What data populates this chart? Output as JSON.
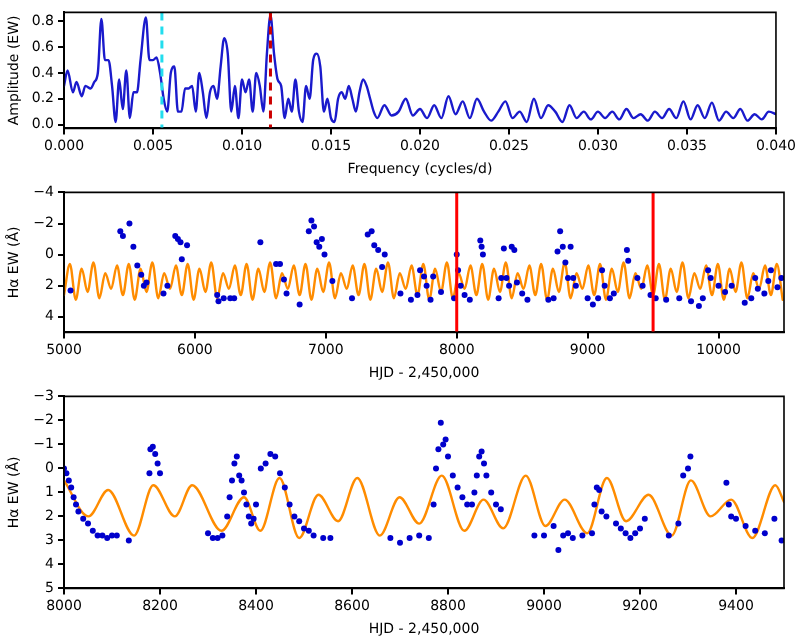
{
  "chart_data": [
    {
      "type": "line",
      "xlabel": "Frequency (cycles/d)",
      "ylabel": "Amplitude (EW)",
      "xlim": [
        0,
        0.04
      ],
      "xticks": [
        {
          "value": 0,
          "label": "0.000"
        },
        {
          "value": 0.005,
          "label": "0.005"
        },
        {
          "value": 0.01,
          "label": "0.010"
        },
        {
          "value": 0.015,
          "label": "0.015"
        },
        {
          "value": 0.02,
          "label": "0.020"
        },
        {
          "value": 0.025,
          "label": "0.025"
        },
        {
          "value": 0.03,
          "label": "0.030"
        },
        {
          "value": 0.035,
          "label": "0.035"
        },
        {
          "value": 0.04,
          "label": "0.040"
        }
      ],
      "ylim": [
        -0.03,
        0.87
      ],
      "yticks": [
        {
          "value": 0,
          "label": "0.0"
        },
        {
          "value": 0.2,
          "label": "0.2"
        },
        {
          "value": 0.4,
          "label": "0.4"
        },
        {
          "value": 0.6,
          "label": "0.6"
        },
        {
          "value": 0.8,
          "label": "0.8"
        }
      ],
      "series": [
        {
          "color": "#1a1acc",
          "x": [
            0,
            0.0002,
            0.0005,
            0.0007,
            0.001,
            0.0012,
            0.0015,
            0.0017,
            0.0019,
            0.0021,
            0.0023,
            0.0025,
            0.0027,
            0.0029,
            0.0031,
            0.0033,
            0.0035,
            0.0037,
            0.0039,
            0.0041,
            0.0043,
            0.0046,
            0.0048,
            0.005,
            0.0052,
            0.0054,
            0.0056,
            0.0058,
            0.006,
            0.0062,
            0.0064,
            0.0066,
            0.0068,
            0.007,
            0.0072,
            0.0074,
            0.0076,
            0.0078,
            0.008,
            0.0082,
            0.0084,
            0.0086,
            0.0088,
            0.009,
            0.0092,
            0.0094,
            0.0096,
            0.0098,
            0.01,
            0.0102,
            0.0104,
            0.0106,
            0.0108,
            0.011,
            0.0112,
            0.0114,
            0.0116,
            0.0118,
            0.012,
            0.0122,
            0.0124,
            0.0126,
            0.0128,
            0.013,
            0.0132,
            0.0134,
            0.0136,
            0.0138,
            0.014,
            0.0142,
            0.0144,
            0.0146,
            0.0148,
            0.015,
            0.0152,
            0.0154,
            0.0156,
            0.0158,
            0.016,
            0.0162,
            0.0164,
            0.0166,
            0.0168,
            0.017,
            0.0172,
            0.0174,
            0.0176,
            0.018,
            0.0184,
            0.0188,
            0.0192,
            0.0196,
            0.02,
            0.0204,
            0.0208,
            0.0212,
            0.0216,
            0.022,
            0.0224,
            0.0228,
            0.0232,
            0.0236,
            0.024,
            0.0244,
            0.0248,
            0.0252,
            0.0256,
            0.026,
            0.0264,
            0.0268,
            0.0272,
            0.0276,
            0.028,
            0.0284,
            0.0288,
            0.0292,
            0.0296,
            0.03,
            0.0304,
            0.0308,
            0.0312,
            0.0316,
            0.032,
            0.0324,
            0.0328,
            0.0332,
            0.0336,
            0.034,
            0.0344,
            0.0348,
            0.0352,
            0.0356,
            0.036,
            0.0364,
            0.0368,
            0.0372,
            0.0376,
            0.038,
            0.0384,
            0.0388,
            0.0392,
            0.0396,
            0.04
          ],
          "values": [
            0.3,
            0.42,
            0.25,
            0.33,
            0.22,
            0.3,
            0.28,
            0.33,
            0.4,
            0.82,
            0.5,
            0.5,
            0.3,
            0.02,
            0.35,
            0.12,
            0.42,
            0.05,
            0.25,
            0.25,
            0.5,
            0.83,
            0.5,
            0.5,
            0.52,
            0.4,
            0.2,
            0.1,
            0.4,
            0.45,
            0.1,
            0.1,
            0.28,
            0.28,
            0.3,
            0.1,
            0.4,
            0.25,
            0.05,
            0.25,
            0.3,
            0.2,
            0.45,
            0.67,
            0.55,
            0.1,
            0.3,
            0.05,
            0.35,
            0.25,
            0.35,
            0.1,
            0.4,
            0.3,
            0.1,
            0.55,
            0.85,
            0.55,
            0.35,
            0.3,
            0.05,
            0.2,
            0.1,
            0.35,
            0.1,
            0.02,
            0.3,
            0.2,
            0.5,
            0.55,
            0.45,
            0.1,
            0.2,
            0.05,
            0.02,
            0.2,
            0.25,
            0.2,
            0.3,
            0.2,
            0.1,
            0.25,
            0.35,
            0.3,
            0.2,
            0.1,
            0.05,
            0.15,
            0.07,
            0.1,
            0.2,
            0.07,
            0.12,
            0.05,
            0.15,
            0.05,
            0.22,
            0.08,
            0.18,
            0.05,
            0.2,
            0.1,
            0.03,
            0.1,
            0.18,
            0.05,
            0.1,
            0.02,
            0.2,
            0.05,
            0.15,
            0.1,
            0.02,
            0.15,
            0.05,
            0.1,
            0.04,
            0.1,
            0.05,
            0.1,
            0.04,
            0.12,
            0.05,
            0.08,
            0.03,
            0.1,
            0.05,
            0.12,
            0.05,
            0.18,
            0.04,
            0.15,
            0.05,
            0.17,
            0.03,
            0.1,
            0.05,
            0.12,
            0.03,
            0.08,
            0.04,
            0.1,
            0.08
          ]
        }
      ],
      "ref_lines": [
        {
          "axis": "x",
          "value": 0.0055,
          "color": "#22ddee",
          "line_style": "dashed"
        },
        {
          "axis": "x",
          "value": 0.0116,
          "color": "#cc0000",
          "line_style": "dashed"
        }
      ]
    },
    {
      "type": "scatter",
      "xlabel": "HJD - 2,450,000",
      "ylabel": "Hα EW (Å)",
      "xlim": [
        5000,
        10500
      ],
      "xticks": [
        5000,
        6000,
        7000,
        8000,
        9000,
        10000
      ],
      "ylim": [
        5,
        -4
      ],
      "yticks": [
        {
          "value": -4,
          "label": "−4"
        },
        {
          "value": -2,
          "label": "−2"
        },
        0,
        2,
        4
      ],
      "series": [
        {
          "marker": "circle",
          "color": "#0000cc",
          "x": [
            5050,
            5430,
            5450,
            5500,
            5530,
            5560,
            5590,
            5610,
            5630,
            5760,
            5790,
            5850,
            5870,
            5890,
            5900,
            5940,
            6170,
            6180,
            6220,
            6270,
            6300,
            6500,
            6620,
            6650,
            6680,
            6700,
            6800,
            6870,
            6890,
            6910,
            6930,
            6950,
            6970,
            6990,
            7050,
            7200,
            7320,
            7350,
            7370,
            7400,
            7430,
            7450,
            7570,
            7650,
            7700,
            7720,
            7750,
            7770,
            7800,
            7820,
            7880,
            7980,
            8000,
            8010,
            8030,
            8060,
            8100,
            8180,
            8190,
            8200,
            8320,
            8340,
            8360,
            8380,
            8400,
            8420,
            8440,
            8460,
            8500,
            8540,
            8700,
            8740,
            8770,
            8790,
            8810,
            8830,
            8850,
            8870,
            8890,
            8910,
            9000,
            9040,
            9080,
            9110,
            9130,
            9170,
            9200,
            9300,
            9310,
            9380,
            9420,
            9480,
            9520,
            9600,
            9700,
            9790,
            9850,
            9880,
            9920,
            9940,
            10000,
            10050,
            10100,
            10200,
            10250,
            10280,
            10300,
            10350,
            10380,
            10400,
            10450,
            10480
          ],
          "values": [
            2.3,
            -1.5,
            -1.2,
            -2.0,
            -0.5,
            0.7,
            1.3,
            2.0,
            1.8,
            2.5,
            2.0,
            -1.2,
            -1.0,
            -0.8,
            0.3,
            -0.6,
            2.6,
            3.0,
            2.8,
            2.8,
            2.8,
            -0.8,
            0.6,
            0.6,
            1.6,
            2.5,
            3.2,
            -1.5,
            -2.2,
            -1.8,
            -0.8,
            -0.5,
            -1.0,
            0.0,
            1.7,
            2.8,
            -1.3,
            -1.5,
            -0.6,
            -0.3,
            0.8,
            0.0,
            2.5,
            2.9,
            2.6,
            1.0,
            1.4,
            2.0,
            2.9,
            1.4,
            2.4,
            2.8,
            0.0,
            1.0,
            2.0,
            2.6,
            2.9,
            -0.9,
            -0.5,
            0.0,
            2.8,
            1.5,
            -0.4,
            1.5,
            2.0,
            -0.5,
            -0.3,
            1.8,
            2.5,
            2.9,
            2.9,
            2.8,
            -0.2,
            -1.5,
            -0.5,
            0.5,
            1.5,
            -0.5,
            1.5,
            2.0,
            2.8,
            3.2,
            2.8,
            1.0,
            2.0,
            2.8,
            2.5,
            -0.3,
            0.4,
            1.5,
            2.0,
            2.6,
            2.8,
            2.9,
            2.8,
            3.0,
            3.3,
            2.8,
            1.0,
            1.5,
            2.0,
            2.4,
            2.0,
            3.1,
            2.8,
            1.5,
            2.2,
            2.5,
            1.7,
            1.0,
            2.1,
            1.5
          ]
        },
        {
          "type": "line",
          "color": "#ff8c00",
          "x": [
            5000,
            5045,
            5090,
            5135,
            5180,
            5225,
            5270,
            5315,
            5360,
            5405,
            5450,
            5495,
            5540,
            5585,
            5630,
            5675,
            5720,
            5765,
            5810,
            5855,
            5900,
            5945,
            5990,
            6035,
            6080,
            6125,
            6170,
            6215,
            6260,
            6305,
            6350,
            6395,
            6440,
            6485,
            6530,
            6575,
            6620,
            6665,
            6710,
            6755,
            6800,
            6845,
            6890,
            6935,
            6980,
            7025,
            7070,
            7115,
            7160,
            7205,
            7250,
            7295,
            7340,
            7385,
            7430,
            7475,
            7520,
            7565,
            7610,
            7655,
            7700,
            7745,
            7790,
            7835,
            7880,
            7925,
            7970,
            8015,
            8060,
            8105,
            8150,
            8195,
            8240,
            8285,
            8330,
            8375,
            8420,
            8465,
            8510,
            8555,
            8600,
            8645,
            8690,
            8735,
            8780,
            8825,
            8870,
            8915,
            8960,
            9005,
            9050,
            9095,
            9140,
            9185,
            9230,
            9275,
            9320,
            9365,
            9410,
            9455,
            9500,
            9545,
            9590,
            9635,
            9680,
            9725,
            9770,
            9815,
            9860,
            9905,
            9950,
            9995,
            10040,
            10085,
            10130,
            10175,
            10220,
            10265,
            10310,
            10355,
            10400,
            10445,
            10490
          ],
          "values": [
            2.6,
            0.6,
            2.9,
            0.9,
            2.4,
            0.5,
            2.8,
            1.2,
            2.2,
            0.7,
            2.6,
            0.6,
            2.9,
            0.9,
            2.4,
            0.5,
            2.8,
            1.2,
            2.2,
            0.7,
            2.6,
            0.6,
            2.9,
            0.9,
            2.4,
            0.5,
            2.8,
            1.2,
            2.2,
            0.7,
            2.6,
            0.6,
            2.9,
            0.9,
            2.4,
            0.5,
            2.8,
            1.2,
            2.2,
            0.7,
            2.6,
            0.6,
            2.9,
            0.9,
            2.4,
            0.5,
            2.8,
            1.2,
            2.2,
            0.7,
            2.6,
            0.6,
            2.9,
            0.9,
            2.4,
            0.5,
            2.8,
            1.2,
            2.2,
            0.7,
            2.6,
            0.6,
            2.9,
            0.9,
            2.4,
            0.5,
            2.8,
            1.2,
            2.2,
            0.7,
            2.6,
            0.6,
            2.9,
            0.9,
            2.4,
            0.5,
            2.8,
            1.2,
            2.2,
            0.7,
            2.6,
            0.6,
            2.9,
            0.9,
            2.4,
            0.5,
            2.8,
            1.2,
            2.2,
            0.7,
            2.6,
            0.6,
            2.9,
            0.9,
            2.4,
            0.5,
            2.8,
            1.2,
            2.2,
            0.7,
            2.6,
            0.6,
            2.9,
            0.9,
            2.4,
            0.5,
            2.8,
            1.2,
            2.2,
            0.7,
            2.6,
            0.6,
            2.9,
            0.9,
            2.4,
            0.5,
            2.8,
            1.2,
            2.2,
            0.7,
            2.6,
            0.6,
            2.9
          ]
        }
      ],
      "ref_lines": [
        {
          "axis": "x",
          "value": 8000,
          "color": "#ff0000",
          "line_style": "solid"
        },
        {
          "axis": "x",
          "value": 9500,
          "color": "#ff0000",
          "line_style": "solid"
        }
      ]
    },
    {
      "type": "scatter",
      "xlabel": "HJD - 2,450,000",
      "ylabel": "Hα EW (Å)",
      "xlim": [
        8000,
        9500
      ],
      "xticks": [
        8000,
        8200,
        8400,
        8600,
        8800,
        9000,
        9200,
        9400
      ],
      "ylim": [
        5,
        -3
      ],
      "yticks": [
        {
          "value": -3,
          "label": "−3"
        },
        {
          "value": -2,
          "label": "−2"
        },
        {
          "value": -1,
          "label": "−1"
        },
        0,
        1,
        2,
        3,
        4,
        5
      ],
      "series": [
        {
          "marker": "circle",
          "color": "#0000cc",
          "x": [
            8000,
            8005,
            8010,
            8015,
            8020,
            8025,
            8030,
            8040,
            8050,
            8060,
            8070,
            8080,
            8090,
            8100,
            8110,
            8135,
            8178,
            8180,
            8185,
            8190,
            8195,
            8200,
            8300,
            8310,
            8320,
            8330,
            8340,
            8345,
            8350,
            8355,
            8360,
            8365,
            8370,
            8375,
            8380,
            8385,
            8390,
            8395,
            8400,
            8410,
            8420,
            8430,
            8440,
            8450,
            8460,
            8470,
            8480,
            8490,
            8500,
            8510,
            8520,
            8540,
            8555,
            8680,
            8700,
            8720,
            8740,
            8760,
            8770,
            8775,
            8780,
            8785,
            8790,
            8795,
            8800,
            8810,
            8820,
            8830,
            8840,
            8850,
            8855,
            8860,
            8865,
            8870,
            8875,
            8880,
            8890,
            8900,
            8910,
            8980,
            9000,
            9020,
            9030,
            9040,
            9050,
            9060,
            9080,
            9100,
            9105,
            9110,
            9115,
            9120,
            9130,
            9150,
            9160,
            9170,
            9180,
            9190,
            9200,
            9210,
            9260,
            9280,
            9290,
            9300,
            9305,
            9380,
            9385,
            9390,
            9400,
            9420,
            9440,
            9460,
            9480,
            9495
          ],
          "values": [
            0.0,
            0.2,
            0.5,
            0.8,
            1.2,
            1.5,
            1.8,
            2.1,
            2.3,
            2.6,
            2.8,
            2.8,
            2.9,
            2.8,
            2.8,
            3.0,
            0.2,
            -0.8,
            -0.9,
            -0.6,
            -0.2,
            0.2,
            2.7,
            2.9,
            2.9,
            2.8,
            2.0,
            1.2,
            0.5,
            -0.2,
            -0.5,
            0.3,
            0.5,
            1.0,
            1.5,
            2.0,
            2.3,
            2.1,
            1.5,
            0.0,
            -0.2,
            -0.6,
            -0.5,
            0.2,
            0.8,
            1.5,
            2.0,
            2.2,
            2.5,
            2.6,
            2.8,
            2.9,
            2.9,
            2.9,
            3.1,
            2.9,
            2.8,
            2.9,
            1.5,
            0.0,
            -0.8,
            -1.9,
            -1.0,
            -1.2,
            -0.5,
            0.3,
            0.8,
            1.2,
            1.5,
            1.5,
            1.0,
            0.3,
            -0.5,
            -0.7,
            -0.2,
            0.3,
            1.0,
            1.5,
            1.7,
            2.8,
            2.8,
            2.4,
            3.4,
            2.8,
            2.7,
            2.9,
            2.8,
            2.7,
            1.5,
            0.8,
            0.9,
            1.8,
            2.0,
            2.3,
            2.5,
            2.7,
            2.9,
            2.7,
            2.5,
            2.1,
            2.8,
            2.3,
            0.3,
            0.0,
            -0.5,
            0.6,
            1.5,
            2.0,
            2.1,
            2.4,
            2.6,
            2.7,
            2.1,
            3.0
          ]
        },
        {
          "type": "line",
          "color": "#ff8c00",
          "x": [
            8000,
            8051,
            8092,
            8146,
            8186,
            8231,
            8267,
            8328,
            8375,
            8409,
            8449,
            8490,
            8530,
            8571,
            8611,
            8658,
            8699,
            8740,
            8787,
            8834,
            8874,
            8915,
            8962,
            9003,
            9043,
            9090,
            9131,
            9171,
            9218,
            9266,
            9306,
            9347,
            9390,
            9434,
            9482,
            9500
          ],
          "values": [
            0.5,
            2.0,
            0.9,
            2.8,
            0.7,
            2.0,
            0.7,
            2.6,
            1.2,
            2.6,
            0.4,
            2.9,
            1.1,
            2.2,
            0.4,
            2.8,
            1.2,
            2.3,
            0.3,
            2.6,
            1.3,
            2.5,
            0.3,
            2.4,
            1.3,
            2.7,
            0.4,
            2.2,
            1.1,
            2.8,
            0.5,
            2.0,
            1.3,
            2.9,
            0.7,
            1.4
          ]
        }
      ]
    }
  ]
}
